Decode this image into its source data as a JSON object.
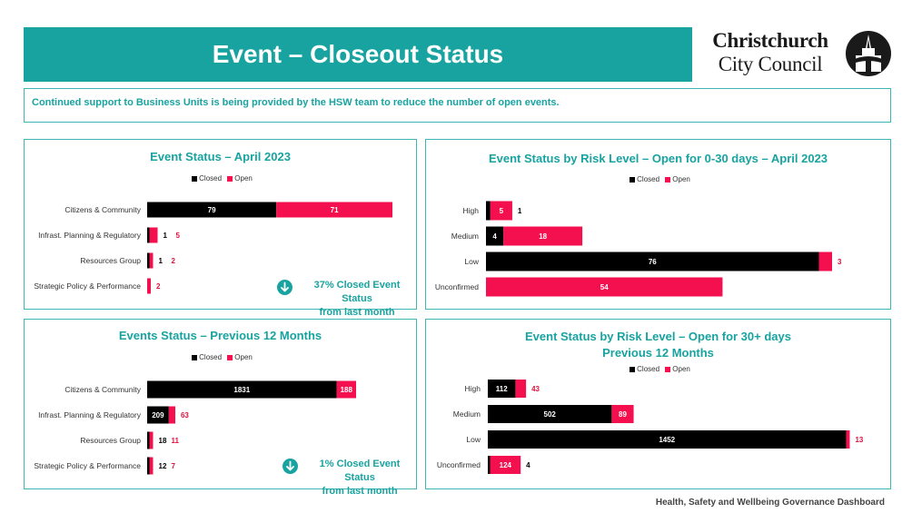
{
  "header": {
    "title": "Event – Closeout Status",
    "logo_line1": "Christchurch",
    "logo_line2": "City Council",
    "logo_icon": "cathedral-logo-icon"
  },
  "info": {
    "message": "Continued support to Business Units is being provided by the HSW team to reduce the number of open events."
  },
  "legend": {
    "closed": "Closed",
    "open": "Open"
  },
  "colors": {
    "closed": "#000000",
    "open": "#f4104f",
    "accent": "#18a3a0"
  },
  "callouts": {
    "april": {
      "line1": "37% Closed Event Status",
      "line2": "from last month",
      "icon": "arrow-down-icon"
    },
    "year": {
      "line1": "1% Closed Event Status",
      "line2": "from last month",
      "icon": "arrow-down-icon"
    }
  },
  "footer": {
    "text": "Health, Safety and Wellbeing Governance Dashboard"
  },
  "chart_data": [
    {
      "id": "april",
      "type": "bar",
      "orientation": "horizontal",
      "stacked": true,
      "title": "Event Status – April 2023",
      "title_line2": "",
      "categories": [
        "Citizens & Community",
        "Infrast.  Planning & Regulatory",
        "Resources Group",
        "Strategic Policy & Performance"
      ],
      "series": [
        {
          "name": "Closed",
          "values": [
            79,
            1,
            1,
            0
          ]
        },
        {
          "name": "Open",
          "values": [
            71,
            5,
            2,
            2
          ]
        }
      ],
      "xlim": [
        0,
        150
      ]
    },
    {
      "id": "risk30",
      "type": "bar",
      "orientation": "horizontal",
      "stacked": true,
      "title": "Event Status by Risk Level – Open for 0-30 days – April 2023",
      "title_line2": "",
      "categories": [
        "High",
        "Medium",
        "Low",
        "Unconfirmed"
      ],
      "series": [
        {
          "name": "Closed",
          "values": [
            1,
            4,
            76,
            0
          ]
        },
        {
          "name": "Open",
          "values": [
            5,
            18,
            3,
            54
          ]
        }
      ],
      "xlim": [
        0,
        79
      ]
    },
    {
      "id": "year",
      "type": "bar",
      "orientation": "horizontal",
      "stacked": true,
      "title": "Events Status – Previous 12 Months",
      "title_line2": "",
      "categories": [
        "Citizens & Community",
        "Infrast.  Planning & Regulatory",
        "Resources Group",
        "Strategic Policy & Performance"
      ],
      "series": [
        {
          "name": "Closed",
          "values": [
            1831,
            209,
            18,
            12
          ]
        },
        {
          "name": "Open",
          "values": [
            188,
            63,
            11,
            7
          ]
        }
      ],
      "xlim": [
        0,
        2019
      ]
    },
    {
      "id": "risk30plus",
      "type": "bar",
      "orientation": "horizontal",
      "stacked": true,
      "title": "Event Status by Risk Level – Open for 30+ days",
      "title_line2": "Previous 12 Months",
      "categories": [
        "High",
        "Medium",
        "Low",
        "Unconfirmed"
      ],
      "series": [
        {
          "name": "Closed",
          "values": [
            112,
            502,
            1452,
            4
          ]
        },
        {
          "name": "Open",
          "values": [
            43,
            89,
            13,
            124
          ]
        }
      ],
      "xlim": [
        0,
        1465
      ]
    }
  ]
}
